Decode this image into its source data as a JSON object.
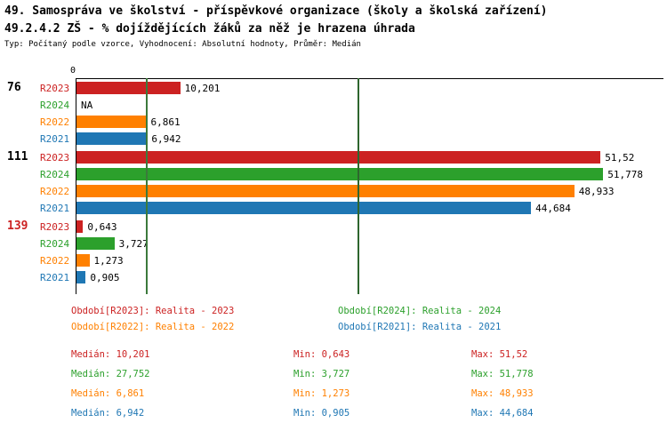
{
  "chart_data": {
    "type": "bar",
    "orientation": "horizontal",
    "title": "49. Samospráva ve školství - příspěvkové organizace (školy a školská zařízení)",
    "subtitle": "49.2.4.2 ZŠ - % dojíždějících žáků za něž je hrazena úhrada",
    "meta": "Typ: Počítaný podle vzorce, Vyhodnocení: Absolutní hodnoty, Průměr: Medián",
    "xlim": [
      0,
      57.7
    ],
    "x_tick_labels": [
      "0"
    ],
    "grid": false,
    "series_order": [
      "R2023",
      "R2024",
      "R2022",
      "R2021"
    ],
    "series_colors": {
      "R2023": "#cc2222",
      "R2024": "#2ca02c",
      "R2022": "#ff8000",
      "R2021": "#1f77b4"
    },
    "groups": [
      {
        "id": "76",
        "id_color": "#000000",
        "bars": [
          {
            "series": "R2023",
            "value": 10.201,
            "label": "10,201"
          },
          {
            "series": "R2024",
            "value": null,
            "label": "NA"
          },
          {
            "series": "R2022",
            "value": 6.861,
            "label": "6,861"
          },
          {
            "series": "R2021",
            "value": 6.942,
            "label": "6,942"
          }
        ]
      },
      {
        "id": "111",
        "id_color": "#000000",
        "bars": [
          {
            "series": "R2023",
            "value": 51.52,
            "label": "51,52"
          },
          {
            "series": "R2024",
            "value": 51.778,
            "label": "51,778"
          },
          {
            "series": "R2022",
            "value": 48.933,
            "label": "48,933"
          },
          {
            "series": "R2021",
            "value": 44.684,
            "label": "44,684"
          }
        ]
      },
      {
        "id": "139",
        "id_color": "#cc2222",
        "bars": [
          {
            "series": "R2023",
            "value": 0.643,
            "label": "0,643"
          },
          {
            "series": "R2024",
            "value": 3.727,
            "label": "3,727"
          },
          {
            "series": "R2022",
            "value": 1.273,
            "label": "1,273"
          },
          {
            "series": "R2021",
            "value": 0.905,
            "label": "0,905"
          }
        ]
      }
    ],
    "reference_lines": [
      {
        "value": 6.942,
        "color": "#3c7a3c"
      },
      {
        "value": 27.752,
        "color": "#2e662e"
      }
    ],
    "legend": [
      {
        "label": "Období[R2023]: Realita - 2023",
        "color": "#cc2222"
      },
      {
        "label": "Období[R2024]: Realita - 2024",
        "color": "#2ca02c"
      },
      {
        "label": "Období[R2022]: Realita - 2022",
        "color": "#ff8000"
      },
      {
        "label": "Období[R2021]: Realita - 2021",
        "color": "#1f77b4"
      }
    ],
    "stats": [
      {
        "median": "Medián: 10,201",
        "min": "Min: 0,643",
        "max": "Max: 51,52",
        "color": "#cc2222"
      },
      {
        "median": "Medián: 27,752",
        "min": "Min: 3,727",
        "max": "Max: 51,778",
        "color": "#2ca02c"
      },
      {
        "median": "Medián: 6,861",
        "min": "Min: 1,273",
        "max": "Max: 48,933",
        "color": "#ff8000"
      },
      {
        "median": "Medián: 6,942",
        "min": "Min: 0,905",
        "max": "Max: 44,684",
        "color": "#1f77b4"
      }
    ]
  }
}
